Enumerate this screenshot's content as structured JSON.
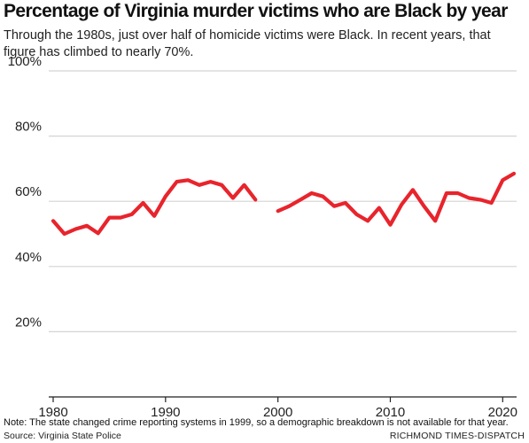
{
  "header": {
    "title": "Percentage of Virginia murder victims who are Black by year",
    "subtitle": "Through the 1980s, just over half of homicide victims were Black. In recent years, that figure has climbed to nearly 70%."
  },
  "footer": {
    "note": "Note: The state changed crime reporting systems in 1999, so a demographic breakdown is not available for that year.",
    "source": "Source: Virginia State Police",
    "credit": "RICHMOND TIMES-DISPATCH"
  },
  "colors": {
    "line": "#e8242c",
    "grid": "#d4d4d4",
    "axis": "#222222"
  },
  "chart_data": {
    "type": "line",
    "title": "Percentage of Virginia murder victims who are Black by year",
    "xlabel": "",
    "ylabel": "",
    "xlim": [
      1980,
      2021
    ],
    "ylim": [
      0,
      100
    ],
    "x_ticks": [
      1980,
      1990,
      2000,
      2010,
      2020
    ],
    "x_tick_labels": [
      "1980",
      "1990",
      "2000",
      "2010",
      "2020"
    ],
    "y_ticks": [
      20,
      40,
      60,
      80,
      100
    ],
    "y_tick_labels": [
      "20%",
      "40%",
      "60%",
      "80%",
      "100%"
    ],
    "grid": true,
    "series": [
      {
        "color": "#e8242c",
        "x": [
          1980,
          1981,
          1982,
          1983,
          1984,
          1985,
          1986,
          1987,
          1988,
          1989,
          1990,
          1991,
          1992,
          1993,
          1994,
          1995,
          1996,
          1997,
          1998,
          1999,
          2000,
          2001,
          2002,
          2003,
          2004,
          2005,
          2006,
          2007,
          2008,
          2009,
          2010,
          2011,
          2012,
          2013,
          2014,
          2015,
          2016,
          2017,
          2018,
          2019,
          2020,
          2021
        ],
        "values": [
          54,
          50,
          51.5,
          52.5,
          50.2,
          55,
          55,
          56,
          59.5,
          55.5,
          61.5,
          66,
          66.5,
          65,
          66,
          65,
          61,
          65,
          60.5,
          null,
          57,
          58.5,
          60.5,
          62.5,
          61.5,
          58.5,
          59.5,
          56,
          54,
          58,
          52.8,
          59,
          63.5,
          58.5,
          54,
          62.5,
          62.5,
          61,
          60.5,
          59.5,
          66.5,
          68.5
        ]
      }
    ]
  }
}
